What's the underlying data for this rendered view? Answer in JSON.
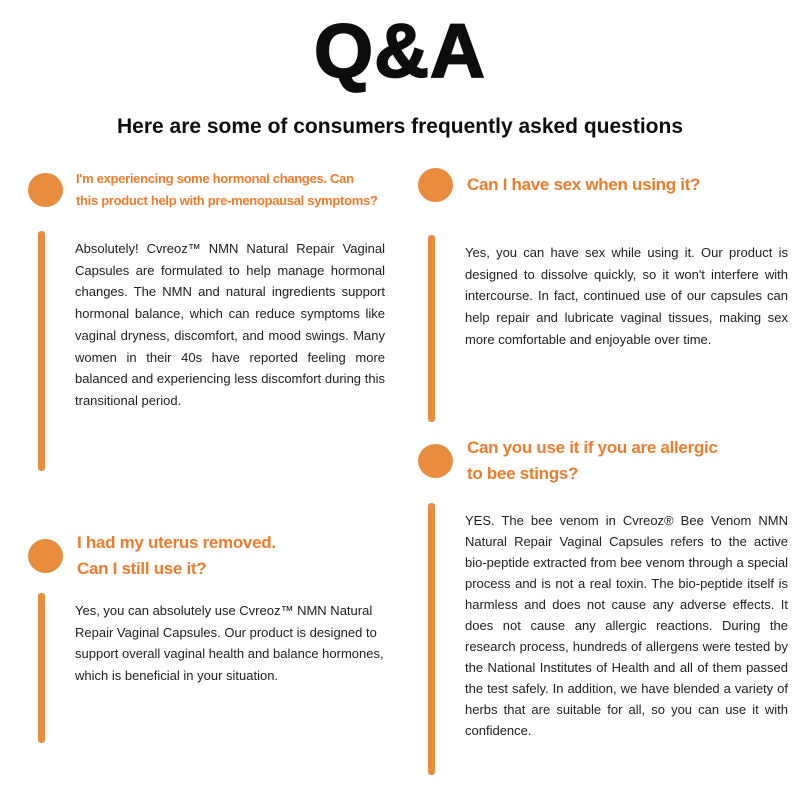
{
  "header": {
    "title": "Q&A",
    "subtitle": "Here are some of consumers frequently asked questions"
  },
  "colors": {
    "accent_orange": "#E98C3E",
    "question_orange": "#ED7D2B",
    "heading_black": "#0d0d0d",
    "body_text": "#202020"
  },
  "qa_items": [
    {
      "question": "I'm experiencing some hormonal changes. Can\nthis product help with pre-menopausal symptoms?",
      "answer": "Absolutely! Cvreoz™ NMN Natural Repair Vaginal Capsules are formulated to help manage hormonal changes. The NMN and natural ingredients support hormonal balance, which can reduce symptoms like vaginal dryness, discomfort, and mood swings. Many women in their 40s have reported feeling more balanced and experiencing less discomfort during this transitional period."
    },
    {
      "question": "I had my uterus removed.\nCan I still use it?",
      "answer": "Yes, you can absolutely use Cvreoz™ NMN Natural Repair Vaginal Capsules. Our product is designed to support overall vaginal health and balance hormones, which is beneficial in your situation."
    },
    {
      "question": "Can I have sex when using it?",
      "answer": "Yes, you can have sex while using it. Our product is designed to dissolve quickly, so it won't interfere with intercourse. In fact, continued use of our capsules can help repair and lubricate vaginal tissues, making sex more comfortable and enjoyable over time."
    },
    {
      "question": "Can you use it if you are allergic\nto bee stings?",
      "answer": "YES. The bee venom in Cvreoz® Bee Venom NMN Natural Repair Vaginal Capsules refers to the active bio-peptide extracted from bee venom through a special process and is not a real toxin. The bio-peptide itself is harmless and does not cause any adverse effects. It does not cause any allergic reactions. During the research process, hundreds of allergens were tested by the National Institutes of Health and all of them passed the test safely. In addition, we have blended a variety of herbs that are suitable for all, so you can use it with confidence."
    }
  ]
}
